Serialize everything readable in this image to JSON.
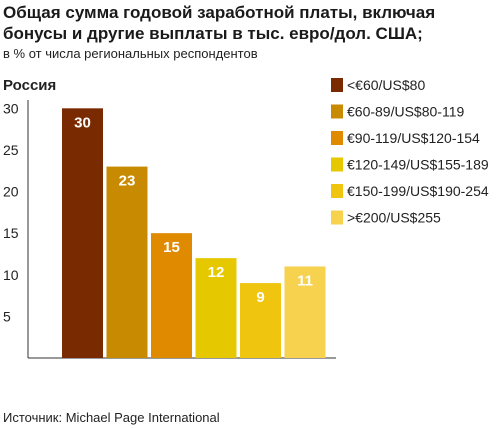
{
  "title": "Общая сумма годовой заработной платы, включая бонусы и другие выплаты в тыс. евро/дол. США;",
  "subtitle": "в % от числа региональных респондентов",
  "source": "Источник: Michael Page International",
  "chart_data": {
    "type": "bar",
    "title": "Россия",
    "categories": [
      "<€60/US$80",
      "€60-89/US$80-119",
      "€90-119/US$120-154",
      "€120-149/US$155-189",
      "€150-199/US$190-254",
      ">€200/US$255"
    ],
    "values": [
      30,
      23,
      15,
      12,
      9,
      11
    ],
    "colors": [
      "#7a2a00",
      "#c78a00",
      "#e08a00",
      "#e6c800",
      "#efc510",
      "#f6d24e"
    ],
    "yticks": [
      5,
      10,
      15,
      20,
      25,
      30
    ],
    "ylim": [
      0,
      31
    ],
    "xlabel": "",
    "ylabel": "",
    "legend": "right",
    "grid": false
  }
}
